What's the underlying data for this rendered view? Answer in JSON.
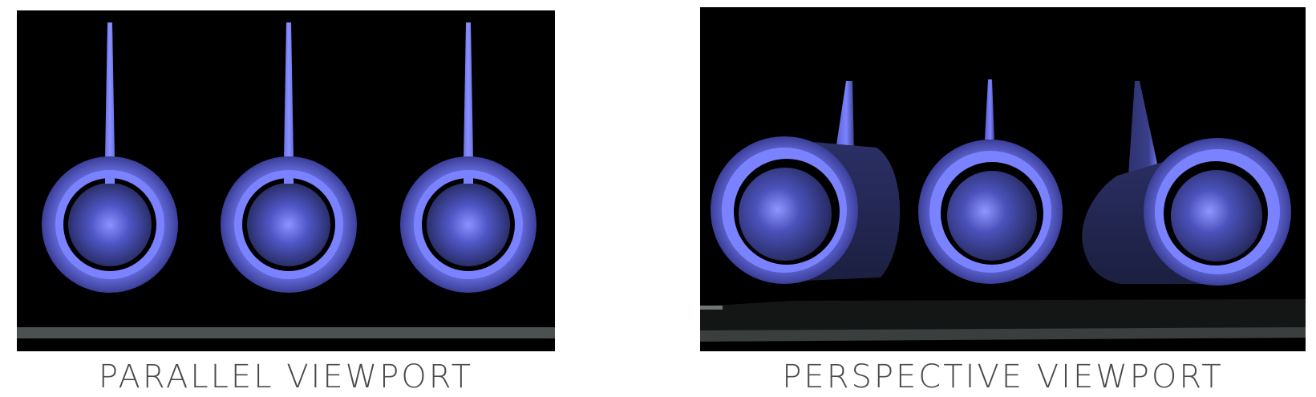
{
  "captions": {
    "parallel": "PARALLEL VIEWPORT",
    "perspective": "PERSPECTIVE VIEWPORT"
  },
  "colors": {
    "page_background": "#ffffff",
    "viewport_background": "#000000",
    "engine_ring": "#7b82ff",
    "engine_shade": "#272c63",
    "nacelle_dark": "#1f2447",
    "ground_plane": "#4b5050",
    "caption_text": "#4a4a4a"
  }
}
